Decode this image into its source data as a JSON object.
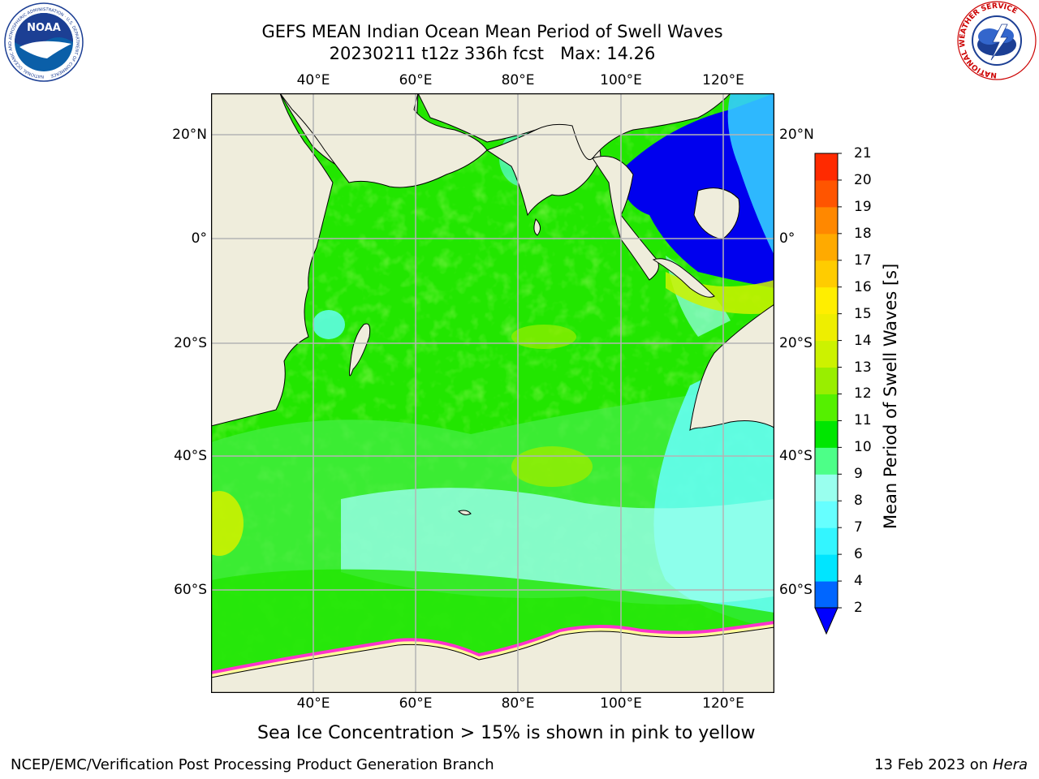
{
  "header": {
    "title_line1": "GEFS MEAN Indian Ocean Mean Period of Swell Waves",
    "title_line2": "20230211 t12z 336h fcst   Max: 14.26"
  },
  "logos": {
    "noaa_text": "NOAA",
    "noaa_ring": "NATIONAL OCEANIC AND ATMOSPHERIC ADMINISTRATION · U.S. DEPARTMENT OF COMMERCE",
    "nws_ring": "NATIONAL WEATHER SERVICE"
  },
  "map": {
    "lon_labels": [
      "40°E",
      "60°E",
      "80°E",
      "100°E",
      "120°E"
    ],
    "lat_labels_left": [
      "20°N",
      "0°",
      "20°S",
      "40°S",
      "60°S"
    ],
    "lat_labels_right": [
      "20°N",
      "0°",
      "20°S",
      "40°S",
      "60°S"
    ],
    "colors": {
      "land": "#efeddc",
      "grid": "#b4b4b4",
      "sea_ice_low": "#ff33cc",
      "sea_ice_high": "#ffff99"
    }
  },
  "colorbar": {
    "label": "Mean Period of Swell Waves [s]",
    "ticks": [
      "2",
      "4",
      "6",
      "7",
      "8",
      "9",
      "10",
      "11",
      "12",
      "13",
      "14",
      "15",
      "16",
      "17",
      "18",
      "19",
      "20",
      "21"
    ],
    "colors": [
      "#0066ff",
      "#00e5ff",
      "#33f5ff",
      "#66ffff",
      "#99ffee",
      "#4dff88",
      "#00e600",
      "#55f000",
      "#99ee00",
      "#ccf200",
      "#eeee00",
      "#ffee00",
      "#ffcc00",
      "#ffaa00",
      "#ff8800",
      "#ff5500",
      "#ff2a00"
    ],
    "under_color": "#0000ff"
  },
  "footer": {
    "note": "Sea Ice Concentration > 15% is shown in pink to yellow",
    "left": "NCEP/EMC/Verification Post Processing Product Generation Branch",
    "right_prefix": "13 Feb 2023 on ",
    "right_host": "Hera"
  }
}
